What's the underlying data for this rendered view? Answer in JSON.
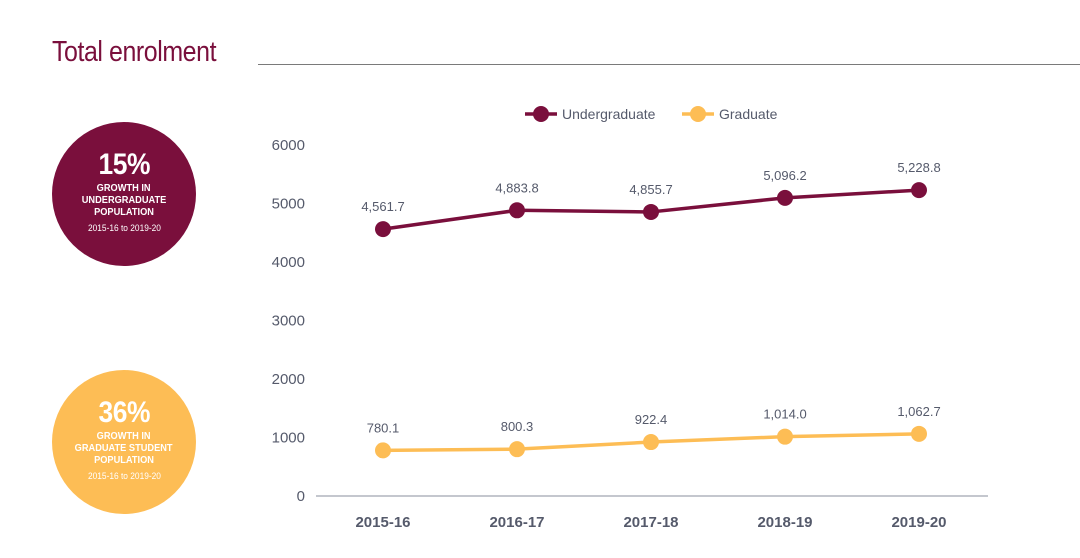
{
  "header": {
    "title": "Total enrolment"
  },
  "badges": {
    "undergrad": {
      "percent": "15%",
      "line1": "GROWTH IN",
      "line2": "UNDERGRADUATE",
      "line3": "POPULATION",
      "period": "2015-16 to 2019-20",
      "color": "#7a0f3c"
    },
    "grad": {
      "percent": "36%",
      "line1": "GROWTH IN",
      "line2": "GRADUATE STUDENT",
      "line3": "POPULATION",
      "period": "2015-16 to 2019-20",
      "color": "#fdbd55"
    }
  },
  "chart_data": {
    "type": "line",
    "title": "",
    "xlabel": "",
    "ylabel": "",
    "categories": [
      "2015-16",
      "2016-17",
      "2017-18",
      "2018-19",
      "2019-20"
    ],
    "ylim": [
      0,
      6000
    ],
    "yticks": [
      "0",
      "1000",
      "2000",
      "3000",
      "4000",
      "5000",
      "6000"
    ],
    "grid": false,
    "legend_position": "top-center",
    "series": [
      {
        "name": "Undergraduate",
        "color": "#7a0f3c",
        "values": [
          4561.7,
          4883.8,
          4855.7,
          5096.2,
          5228.8
        ],
        "labels": [
          "4,561.7",
          "4,883.8",
          "4,855.7",
          "5,096.2",
          "5,228.8"
        ]
      },
      {
        "name": "Graduate",
        "color": "#fdbd55",
        "values": [
          780.1,
          800.3,
          922.4,
          1014.0,
          1062.7
        ],
        "labels": [
          "780.1",
          "800.3",
          "922.4",
          "1,014.0",
          "1,062.7"
        ]
      }
    ]
  }
}
